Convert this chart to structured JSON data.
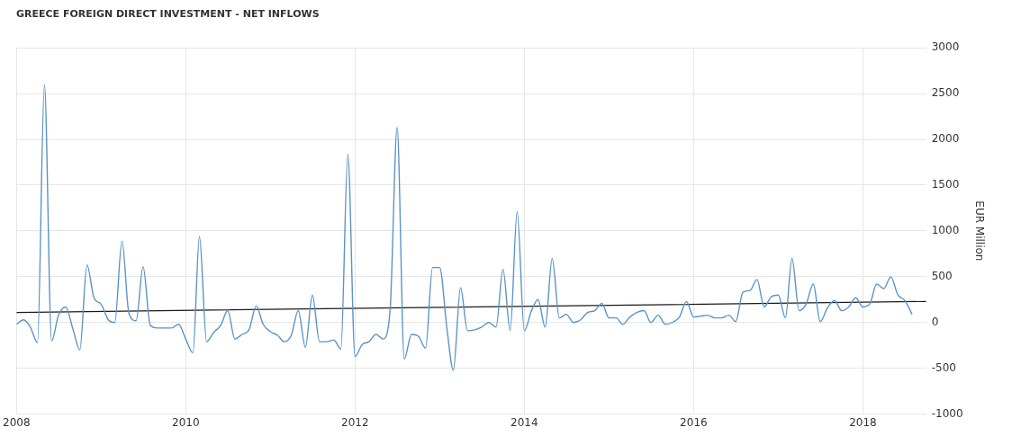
{
  "chart_data": {
    "type": "line",
    "title": "GREECE FOREIGN DIRECT INVESTMENT - NET INFLOWS",
    "ylabel": "EUR Million",
    "x": [
      "2008-01",
      "2008-02",
      "2008-03",
      "2008-04",
      "2008-05",
      "2008-06",
      "2008-07",
      "2008-08",
      "2008-09",
      "2008-10",
      "2008-11",
      "2008-12",
      "2009-01",
      "2009-02",
      "2009-03",
      "2009-04",
      "2009-05",
      "2009-06",
      "2009-07",
      "2009-08",
      "2009-09",
      "2009-10",
      "2009-11",
      "2009-12",
      "2010-01",
      "2010-02",
      "2010-03",
      "2010-04",
      "2010-05",
      "2010-06",
      "2010-07",
      "2010-08",
      "2010-09",
      "2010-10",
      "2010-11",
      "2010-12",
      "2011-01",
      "2011-02",
      "2011-03",
      "2011-04",
      "2011-05",
      "2011-06",
      "2011-07",
      "2011-08",
      "2011-09",
      "2011-10",
      "2011-11",
      "2011-12",
      "2012-01",
      "2012-02",
      "2012-03",
      "2012-04",
      "2012-05",
      "2012-06",
      "2012-07",
      "2012-08",
      "2012-09",
      "2012-10",
      "2012-11",
      "2012-12",
      "2013-01",
      "2013-02",
      "2013-03",
      "2013-04",
      "2013-05",
      "2013-06",
      "2013-07",
      "2013-08",
      "2013-09",
      "2013-10",
      "2013-11",
      "2013-12",
      "2014-01",
      "2014-02",
      "2014-03",
      "2014-04",
      "2014-05",
      "2014-06",
      "2014-07",
      "2014-08",
      "2014-09",
      "2014-10",
      "2014-11",
      "2014-12",
      "2015-01",
      "2015-02",
      "2015-03",
      "2015-04",
      "2015-05",
      "2015-06",
      "2015-07",
      "2015-08",
      "2015-09",
      "2015-10",
      "2015-11",
      "2015-12",
      "2016-01",
      "2016-02",
      "2016-03",
      "2016-04",
      "2016-05",
      "2016-06",
      "2016-07",
      "2016-08",
      "2016-09",
      "2016-10",
      "2016-11",
      "2016-12",
      "2017-01",
      "2017-02",
      "2017-03",
      "2017-04",
      "2017-05",
      "2017-06",
      "2017-07",
      "2017-08",
      "2017-09",
      "2017-10",
      "2017-11",
      "2017-12",
      "2018-01",
      "2018-02",
      "2018-03",
      "2018-04",
      "2018-05",
      "2018-06",
      "2018-07",
      "2018-08"
    ],
    "series": [
      {
        "color": "#5b93c7",
        "values": [
          -20,
          30,
          -50,
          -220,
          2600,
          -200,
          80,
          170,
          -70,
          -300,
          630,
          270,
          200,
          30,
          0,
          890,
          100,
          20,
          610,
          -30,
          -60,
          -60,
          -60,
          -20,
          -180,
          -330,
          940,
          -210,
          -110,
          -30,
          130,
          -180,
          -130,
          -80,
          180,
          -20,
          -100,
          -140,
          -210,
          -140,
          130,
          -270,
          300,
          -210,
          -210,
          -190,
          -290,
          1840,
          -370,
          -240,
          -210,
          -130,
          -180,
          150,
          2130,
          -400,
          -130,
          -150,
          -280,
          600,
          600,
          -60,
          -520,
          380,
          -90,
          -80,
          -50,
          0,
          -50,
          580,
          -90,
          1210,
          -90,
          130,
          250,
          -50,
          700,
          50,
          90,
          0,
          30,
          110,
          130,
          210,
          50,
          50,
          -20,
          60,
          110,
          130,
          0,
          80,
          -20,
          0,
          60,
          230,
          60,
          70,
          80,
          50,
          50,
          80,
          10,
          330,
          350,
          470,
          170,
          280,
          300,
          50,
          700,
          130,
          200,
          420,
          10,
          160,
          240,
          130,
          170,
          270,
          170,
          210,
          420,
          370,
          500,
          300,
          240,
          90
        ]
      },
      {
        "type": "line",
        "color": "#1a1a1a",
        "x": [
          "2008-01",
          "2018-10"
        ],
        "values": [
          110,
          230
        ]
      }
    ],
    "xlim": [
      "2008-01",
      "2018-10"
    ],
    "xticks": [
      "2008",
      "2010",
      "2012",
      "2014",
      "2016",
      "2018"
    ],
    "ylim": [
      -1000,
      3000
    ],
    "yticks": [
      -1000,
      -500,
      0,
      500,
      1000,
      1500,
      2000,
      2500,
      3000
    ],
    "grid": true,
    "legend": false
  }
}
